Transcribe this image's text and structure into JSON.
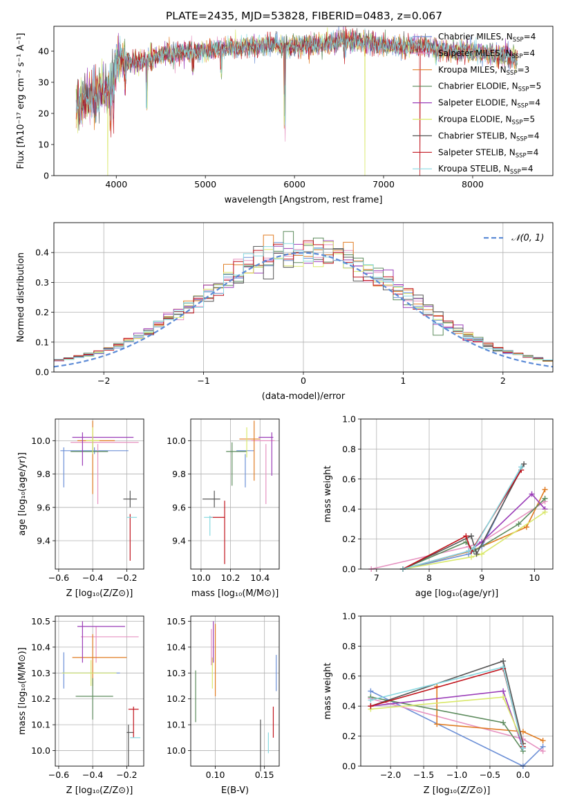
{
  "figure_title": "PLATE=2435, MJD=53828, FIBERID=0483, z=0.067",
  "colors": {
    "cm": "#6b8fd6",
    "sm": "#e691c0",
    "km": "#e07b20",
    "ce": "#5b8a5b",
    "se": "#9a3cb8",
    "ke": "#d9e86a",
    "cs": "#555555",
    "ss": "#c0111a",
    "ks": "#86d8e0"
  },
  "chart_data": [
    {
      "id": "spectrum",
      "type": "line",
      "xlabel": "wavelength [Angstrom, rest frame]",
      "ylabel": "Flux [fλ10⁻¹⁷ erg cm⁻² s⁻¹ A⁻¹]",
      "xlim": [
        3300,
        8900
      ],
      "ylim": [
        0,
        48
      ],
      "xticks": [
        4000,
        5000,
        6000,
        7000,
        8000
      ],
      "yticks": [
        0,
        10,
        20,
        30,
        40
      ],
      "grid": false,
      "legend_position": "upper-right",
      "legend": [
        {
          "key": "cm",
          "label": "Chabrier MILES, N",
          "sub": "SSP",
          "suffix": "=4"
        },
        {
          "key": "sm",
          "label": "Salpeter MILES, N",
          "sub": "SSP",
          "suffix": "=4"
        },
        {
          "key": "km",
          "label": "Kroupa MILES, N",
          "sub": "SSP",
          "suffix": "=3"
        },
        {
          "key": "ce",
          "label": "Chabrier ELODIE, N",
          "sub": "SSP",
          "suffix": "=5"
        },
        {
          "key": "se",
          "label": "Salpeter ELODIE, N",
          "sub": "SSP",
          "suffix": "=4"
        },
        {
          "key": "ke",
          "label": "Kroupa ELODIE, N",
          "sub": "SSP",
          "suffix": "=5"
        },
        {
          "key": "cs",
          "label": "Chabrier STELIB, N",
          "sub": "SSP",
          "suffix": "=4"
        },
        {
          "key": "ss",
          "label": "Salpeter STELIB, N",
          "sub": "SSP",
          "suffix": "=4"
        },
        {
          "key": "ks",
          "label": "Kroupa STELIB, N",
          "sub": "SSP",
          "suffix": "=4"
        }
      ],
      "continuum": [
        [
          3550,
          22
        ],
        [
          3620,
          24
        ],
        [
          3700,
          25
        ],
        [
          3780,
          26.5
        ],
        [
          3850,
          28
        ],
        [
          3900,
          27
        ],
        [
          3970,
          33
        ],
        [
          4000,
          37
        ],
        [
          4100,
          37
        ],
        [
          4200,
          36.5
        ],
        [
          4340,
          37
        ],
        [
          4500,
          38.5
        ],
        [
          4700,
          39.5
        ],
        [
          4860,
          40
        ],
        [
          5000,
          40
        ],
        [
          5200,
          41
        ],
        [
          5500,
          41.5
        ],
        [
          5800,
          42
        ],
        [
          5900,
          41
        ],
        [
          6000,
          42
        ],
        [
          6300,
          42
        ],
        [
          6563,
          43.5
        ],
        [
          6800,
          43
        ],
        [
          7000,
          42
        ],
        [
          7200,
          41
        ],
        [
          7400,
          42
        ],
        [
          7700,
          40
        ],
        [
          8000,
          40
        ],
        [
          8200,
          39
        ],
        [
          8500,
          38
        ]
      ],
      "absorption_lines": [
        {
          "wave": 3934,
          "depth": 16,
          "key": "ke"
        },
        {
          "wave": 3969,
          "depth": 14,
          "key": "cs"
        },
        {
          "wave": 4102,
          "depth": 8,
          "key": "ks"
        },
        {
          "wave": 4340,
          "depth": 14,
          "key": "cs"
        },
        {
          "wave": 4861,
          "depth": 6,
          "key": "cs"
        },
        {
          "wave": 5175,
          "depth": 8,
          "key": "cs"
        },
        {
          "wave": 5890,
          "depth": 27,
          "key": "cs"
        },
        {
          "wave": 6563,
          "depth": 6,
          "key": "cs"
        },
        {
          "wave": 7590,
          "depth": 4,
          "key": "cs"
        }
      ],
      "dropouts": [
        {
          "wave": 3905,
          "key": "ke"
        },
        {
          "wave": 6790,
          "key": "ke"
        },
        {
          "wave": 7410,
          "key": "ss"
        }
      ]
    },
    {
      "id": "residuals",
      "type": "step-histogram",
      "xlabel": "(data-model)/error",
      "ylabel": "Normed distribution",
      "xlim": [
        -2.5,
        2.5
      ],
      "ylim": [
        0,
        0.5
      ],
      "xticks": [
        -2,
        -1,
        0,
        1,
        2
      ],
      "yticks": [
        0.0,
        0.1,
        0.2,
        0.3,
        0.4
      ],
      "grid": true,
      "bin_width": 0.1,
      "reference_curve": {
        "label": "𝒩(0, 1)",
        "mean": 0,
        "sigma": 1,
        "style": "dashed",
        "color": "#5b8ad6"
      },
      "legend_position": "upper-right"
    },
    {
      "id": "z-age",
      "type": "errorbar",
      "xlabel": "Z [log₁₀(Z/Z⊙)]",
      "ylabel": "age  [log₁₀(age/yr)]",
      "xlim": [
        -0.62,
        -0.1
      ],
      "ylim": [
        9.23,
        10.13
      ],
      "xticks": [
        -0.6,
        -0.4,
        -0.2
      ],
      "yticks": [
        9.4,
        9.6,
        9.8,
        10.0
      ],
      "grid": true,
      "points": [
        {
          "key": "cm",
          "x": -0.39,
          "xerr": 0.2,
          "y": 9.94,
          "yerr": 0.02
        },
        {
          "key": "cm",
          "x": -0.57,
          "xerr": 0.0,
          "y": 9.84,
          "yerr": 0.12
        },
        {
          "key": "sm",
          "x": -0.33,
          "xerr": 0.2,
          "y": 9.99,
          "yerr": 0.0
        },
        {
          "key": "sm",
          "x": -0.37,
          "xerr": 0.0,
          "y": 9.8,
          "yerr": 0.18
        },
        {
          "key": "km",
          "x": -0.4,
          "xerr": 0.0,
          "y": 9.9,
          "yerr": 0.22
        },
        {
          "key": "km",
          "x": -0.38,
          "xerr": 0.11,
          "y": 10.0,
          "yerr": 0.0
        },
        {
          "key": "ce",
          "x": -0.42,
          "xerr": 0.11,
          "y": 9.935,
          "yerr": 0.0
        },
        {
          "key": "ce",
          "x": -0.4,
          "xerr": 0.0,
          "y": 9.98,
          "yerr": 0.05
        },
        {
          "key": "se",
          "x": -0.34,
          "xerr": 0.18,
          "y": 10.02,
          "yerr": 0.0
        },
        {
          "key": "se",
          "x": -0.46,
          "xerr": 0.0,
          "y": 9.95,
          "yerr": 0.1
        },
        {
          "key": "ke",
          "x": -0.4,
          "xerr": 0.04,
          "y": 10.0,
          "yerr": 0.08
        },
        {
          "key": "cs",
          "x": -0.18,
          "xerr": 0.04,
          "y": 9.65,
          "yerr": 0.05
        },
        {
          "key": "ss",
          "x": -0.18,
          "xerr": 0.0,
          "y": 9.42,
          "yerr": 0.14
        },
        {
          "key": "ks",
          "x": -0.17,
          "xerr": 0.03,
          "y": 9.54,
          "yerr": 0.0
        }
      ]
    },
    {
      "id": "mass-age",
      "type": "errorbar",
      "xlabel": "mass [log₁₀(M/M⊙)]",
      "ylabel": "",
      "xlim": [
        9.93,
        10.53
      ],
      "ylim": [
        9.23,
        10.13
      ],
      "xticks": [
        10.0,
        10.2,
        10.4
      ],
      "yticks": [
        9.4,
        9.6,
        9.8,
        10.0
      ],
      "grid": true,
      "points": [
        {
          "key": "cm",
          "x": 10.3,
          "xerr": 0.0,
          "y": 9.82,
          "yerr": 0.1
        },
        {
          "key": "cm",
          "x": 10.3,
          "xerr": 0.06,
          "y": 9.94,
          "yerr": 0.0
        },
        {
          "key": "sm",
          "x": 10.44,
          "xerr": 0.0,
          "y": 9.8,
          "yerr": 0.18
        },
        {
          "key": "sm",
          "x": 10.42,
          "xerr": 0.08,
          "y": 10.0,
          "yerr": 0.0
        },
        {
          "key": "km",
          "x": 10.36,
          "xerr": 0.0,
          "y": 9.94,
          "yerr": 0.18
        },
        {
          "key": "km",
          "x": 10.33,
          "xerr": 0.07,
          "y": 10.01,
          "yerr": 0.0
        },
        {
          "key": "ce",
          "x": 10.21,
          "xerr": 0.0,
          "y": 9.86,
          "yerr": 0.13
        },
        {
          "key": "ce",
          "x": 10.24,
          "xerr": 0.07,
          "y": 9.935,
          "yerr": 0.0
        },
        {
          "key": "se",
          "x": 10.48,
          "xerr": 0.0,
          "y": 9.92,
          "yerr": 0.13
        },
        {
          "key": "se",
          "x": 10.44,
          "xerr": 0.05,
          "y": 10.02,
          "yerr": 0.0
        },
        {
          "key": "ke",
          "x": 10.31,
          "xerr": 0.0,
          "y": 9.99,
          "yerr": 0.09
        },
        {
          "key": "cs",
          "x": 10.07,
          "xerr": 0.06,
          "y": 9.65,
          "yerr": 0.0
        },
        {
          "key": "cs",
          "x": 10.09,
          "xerr": 0.0,
          "y": 9.65,
          "yerr": 0.05
        },
        {
          "key": "ss",
          "x": 10.16,
          "xerr": 0.0,
          "y": 9.45,
          "yerr": 0.19
        },
        {
          "key": "ss",
          "x": 10.11,
          "xerr": 0.05,
          "y": 9.54,
          "yerr": 0.0
        },
        {
          "key": "ks",
          "x": 10.06,
          "xerr": 0.0,
          "y": 9.49,
          "yerr": 0.06
        },
        {
          "key": "ks",
          "x": 10.05,
          "xerr": 0.03,
          "y": 9.54,
          "yerr": 0.0
        }
      ]
    },
    {
      "id": "age-weight",
      "type": "line",
      "xlabel": "age  [log₁₀(age/yr)]",
      "ylabel": "mass weight",
      "xlim": [
        6.7,
        10.35
      ],
      "ylim": [
        0,
        1
      ],
      "xticks": [
        7,
        8,
        9,
        10
      ],
      "yticks": [
        0.0,
        0.2,
        0.4,
        0.6,
        0.8,
        1.0
      ],
      "grid": true,
      "marker": "+",
      "series": [
        {
          "key": "cm",
          "x": [
            7.5,
            8.75,
            8.85,
            9.0,
            9.75
          ],
          "y": [
            0.0,
            0.1,
            0.12,
            0.15,
            0.68
          ]
        },
        {
          "key": "sm",
          "x": [
            6.9,
            8.75,
            9.0,
            10.2
          ],
          "y": [
            0.0,
            0.15,
            0.18,
            0.45
          ]
        },
        {
          "key": "km",
          "x": [
            7.5,
            8.8,
            9.85,
            10.2
          ],
          "y": [
            0.0,
            0.12,
            0.28,
            0.53
          ]
        },
        {
          "key": "ce",
          "x": [
            7.5,
            8.7,
            8.85,
            9.7,
            10.2
          ],
          "y": [
            0.0,
            0.18,
            0.12,
            0.3,
            0.47
          ]
        },
        {
          "key": "se",
          "x": [
            7.5,
            8.75,
            9.0,
            9.95,
            10.2
          ],
          "y": [
            0.0,
            0.12,
            0.18,
            0.5,
            0.4
          ]
        },
        {
          "key": "ke",
          "x": [
            7.5,
            8.8,
            9.0,
            10.2
          ],
          "y": [
            0.0,
            0.08,
            0.1,
            0.38
          ]
        },
        {
          "key": "cs",
          "x": [
            7.5,
            8.8,
            8.9,
            9.8
          ],
          "y": [
            0.0,
            0.22,
            0.1,
            0.7
          ]
        },
        {
          "key": "ss",
          "x": [
            7.5,
            8.7,
            8.8,
            9.75
          ],
          "y": [
            0.0,
            0.22,
            0.12,
            0.66
          ]
        },
        {
          "key": "ks",
          "x": [
            7.5,
            8.75,
            8.85,
            9.75
          ],
          "y": [
            0.0,
            0.12,
            0.14,
            0.68
          ]
        }
      ]
    },
    {
      "id": "z-mass",
      "type": "errorbar",
      "xlabel": "Z [log₁₀(Z/Z⊙)]",
      "ylabel": "mass [log₁₀(M/M⊙)]",
      "xlim": [
        -0.62,
        -0.1
      ],
      "ylim": [
        9.94,
        10.52
      ],
      "xticks": [
        -0.6,
        -0.4,
        -0.2
      ],
      "yticks": [
        10.0,
        10.1,
        10.2,
        10.3,
        10.4,
        10.5
      ],
      "grid": true,
      "points": [
        {
          "key": "cm",
          "x": -0.41,
          "xerr": 0.17,
          "y": 10.3,
          "yerr": 0.0
        },
        {
          "key": "cm",
          "x": -0.57,
          "xerr": 0.0,
          "y": 10.31,
          "yerr": 0.07
        },
        {
          "key": "sm",
          "x": -0.3,
          "xerr": 0.17,
          "y": 10.44,
          "yerr": 0.0
        },
        {
          "key": "sm",
          "x": -0.38,
          "xerr": 0.0,
          "y": 10.41,
          "yerr": 0.07
        },
        {
          "key": "km",
          "x": -0.36,
          "xerr": 0.16,
          "y": 10.36,
          "yerr": 0.0
        },
        {
          "key": "km",
          "x": -0.4,
          "xerr": 0.0,
          "y": 10.35,
          "yerr": 0.1
        },
        {
          "key": "ce",
          "x": -0.39,
          "xerr": 0.11,
          "y": 10.21,
          "yerr": 0.0
        },
        {
          "key": "ce",
          "x": -0.4,
          "xerr": 0.0,
          "y": 10.2,
          "yerr": 0.08
        },
        {
          "key": "se",
          "x": -0.35,
          "xerr": 0.14,
          "y": 10.48,
          "yerr": 0.0
        },
        {
          "key": "se",
          "x": -0.46,
          "xerr": 0.0,
          "y": 10.42,
          "yerr": 0.08
        },
        {
          "key": "ke",
          "x": -0.42,
          "xerr": 0.16,
          "y": 10.3,
          "yerr": 0.0
        },
        {
          "key": "ke",
          "x": -0.41,
          "xerr": 0.0,
          "y": 10.3,
          "yerr": 0.05
        },
        {
          "key": "cs",
          "x": -0.18,
          "xerr": 0.02,
          "y": 10.07,
          "yerr": 0.0
        },
        {
          "key": "cs",
          "x": -0.19,
          "xerr": 0.0,
          "y": 10.02,
          "yerr": 0.08
        },
        {
          "key": "ss",
          "x": -0.16,
          "xerr": 0.03,
          "y": 10.16,
          "yerr": 0.0
        },
        {
          "key": "ss",
          "x": -0.16,
          "xerr": 0.0,
          "y": 10.11,
          "yerr": 0.06
        },
        {
          "key": "ks",
          "x": -0.15,
          "xerr": 0.03,
          "y": 10.05,
          "yerr": 0.0
        }
      ]
    },
    {
      "id": "ebv-mass",
      "type": "errorbar",
      "xlabel": "E(B-V)",
      "ylabel": "",
      "xlim": [
        0.075,
        0.165
      ],
      "ylim": [
        9.94,
        10.52
      ],
      "xticks": [
        0.1,
        0.15
      ],
      "yticks": [
        10.0,
        10.1,
        10.2,
        10.3,
        10.4,
        10.5
      ],
      "grid": true,
      "points": [
        {
          "key": "cm",
          "x": 0.162,
          "xerr": 0.0,
          "y": 10.3,
          "yerr": 0.07
        },
        {
          "key": "sm",
          "x": 0.096,
          "xerr": 0.0,
          "y": 10.4,
          "yerr": 0.07
        },
        {
          "key": "km",
          "x": 0.1,
          "xerr": 0.0,
          "y": 10.35,
          "yerr": 0.14
        },
        {
          "key": "ce",
          "x": 0.08,
          "xerr": 0.0,
          "y": 10.21,
          "yerr": 0.1
        },
        {
          "key": "se",
          "x": 0.098,
          "xerr": 0.0,
          "y": 10.42,
          "yerr": 0.08
        },
        {
          "key": "ke",
          "x": 0.097,
          "xerr": 0.0,
          "y": 10.3,
          "yerr": 0.06
        },
        {
          "key": "cs",
          "x": 0.146,
          "xerr": 0.0,
          "y": 10.02,
          "yerr": 0.1
        },
        {
          "key": "ss",
          "x": 0.159,
          "xerr": 0.0,
          "y": 10.11,
          "yerr": 0.06
        },
        {
          "key": "ks",
          "x": 0.154,
          "xerr": 0.0,
          "y": 10.03,
          "yerr": 0.04
        }
      ]
    },
    {
      "id": "z-weight",
      "type": "line",
      "xlabel": "Z [log₁₀(Z/Z⊙)]",
      "ylabel": "mass weight",
      "xlim": [
        -2.45,
        0.45
      ],
      "ylim": [
        0,
        1
      ],
      "xticks": [
        -2.0,
        -1.5,
        -1.0,
        -0.5,
        0.0
      ],
      "yticks": [
        0.0,
        0.2,
        0.4,
        0.6,
        0.8,
        1.0
      ],
      "grid": true,
      "marker": "+",
      "series": [
        {
          "key": "cm",
          "x": [
            -2.3,
            0.0,
            0.3
          ],
          "y": [
            0.5,
            0.0,
            0.13
          ]
        },
        {
          "key": "sm",
          "x": [
            -2.3,
            0.0,
            0.3
          ],
          "y": [
            0.45,
            0.18,
            0.1
          ]
        },
        {
          "key": "km",
          "x": [
            -1.3,
            -1.3,
            0.0,
            0.3
          ],
          "y": [
            0.53,
            0.28,
            0.23,
            0.17
          ]
        },
        {
          "key": "ce",
          "x": [
            -2.3,
            -0.3,
            0.0
          ],
          "y": [
            0.46,
            0.29,
            0.1
          ]
        },
        {
          "key": "se",
          "x": [
            -2.3,
            -0.3,
            0.0
          ],
          "y": [
            0.4,
            0.5,
            0.12
          ]
        },
        {
          "key": "ke",
          "x": [
            -2.3,
            -0.3,
            0.0
          ],
          "y": [
            0.38,
            0.46,
            0.15
          ]
        },
        {
          "key": "cs",
          "x": [
            -2.3,
            -0.3,
            0.0
          ],
          "y": [
            0.4,
            0.7,
            0.15
          ]
        },
        {
          "key": "ss",
          "x": [
            -2.3,
            -0.3,
            0.0
          ],
          "y": [
            0.4,
            0.65,
            0.13
          ]
        },
        {
          "key": "ks",
          "x": [
            -2.3,
            -0.3,
            0.0
          ],
          "y": [
            0.44,
            0.66,
            0.12
          ]
        }
      ]
    }
  ]
}
